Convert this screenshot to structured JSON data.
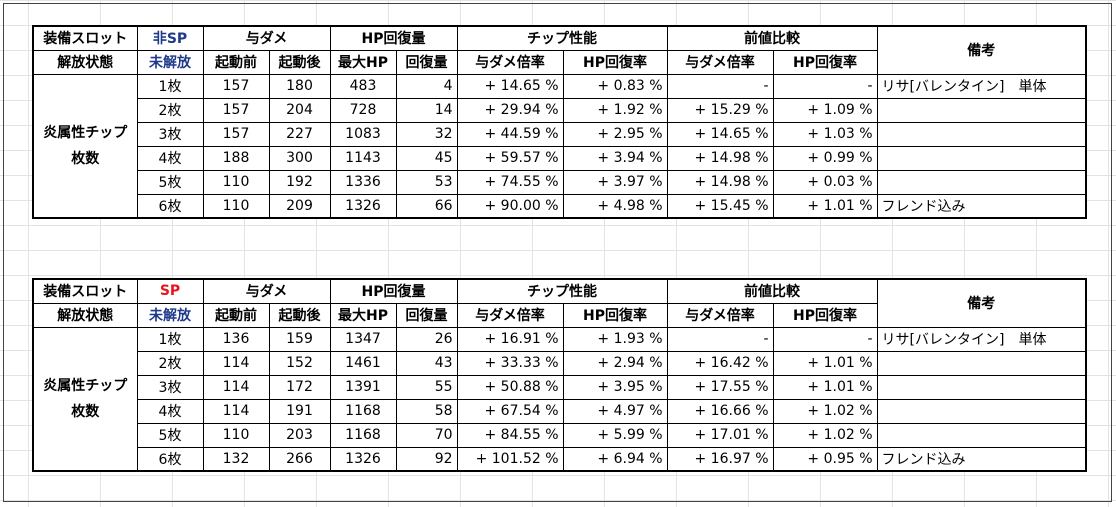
{
  "tables": [
    {
      "slot_label": "装備スロット",
      "slot_value": "非SP",
      "state_label": "解放状態",
      "state_value": "未解放",
      "groups": {
        "damage": "与ダメ",
        "hp_recovery": "HP回復量",
        "chip": "チップ性能",
        "prev": "前値比較",
        "notes": "備考"
      },
      "sub": {
        "before": "起動前",
        "after": "起動後",
        "max_hp": "最大HP",
        "recovery": "回復量",
        "dmg_rate": "与ダメ倍率",
        "hp_rate": "HP回復率",
        "prev_dmg_rate": "与ダメ倍率",
        "prev_hp_rate": "HP回復率"
      },
      "row_label_line1": "炎属性チップ",
      "row_label_line2": "枚数",
      "rows": [
        {
          "count": "1枚",
          "before": "157",
          "after": "180",
          "max_hp": "483",
          "recovery": "4",
          "dmg_rate": "+ 14.65 %",
          "hp_rate": "+ 0.83 %",
          "prev_dmg": "-",
          "prev_hp": "-",
          "note": "リサ[バレンタイン]　単体"
        },
        {
          "count": "2枚",
          "before": "157",
          "after": "204",
          "max_hp": "728",
          "recovery": "14",
          "dmg_rate": "+ 29.94 %",
          "hp_rate": "+ 1.92 %",
          "prev_dmg": "+ 15.29 %",
          "prev_hp": "+ 1.09 %",
          "note": ""
        },
        {
          "count": "3枚",
          "before": "157",
          "after": "227",
          "max_hp": "1083",
          "recovery": "32",
          "dmg_rate": "+ 44.59 %",
          "hp_rate": "+ 2.95 %",
          "prev_dmg": "+ 14.65 %",
          "prev_hp": "+ 1.03 %",
          "note": ""
        },
        {
          "count": "4枚",
          "before": "188",
          "after": "300",
          "max_hp": "1143",
          "recovery": "45",
          "dmg_rate": "+ 59.57 %",
          "hp_rate": "+ 3.94 %",
          "prev_dmg": "+ 14.98 %",
          "prev_hp": "+ 0.99 %",
          "note": ""
        },
        {
          "count": "5枚",
          "before": "110",
          "after": "192",
          "max_hp": "1336",
          "recovery": "53",
          "dmg_rate": "+ 74.55 %",
          "hp_rate": "+ 3.97 %",
          "prev_dmg": "+ 14.98 %",
          "prev_hp": "+ 0.03 %",
          "note": ""
        },
        {
          "count": "6枚",
          "before": "110",
          "after": "209",
          "max_hp": "1326",
          "recovery": "66",
          "dmg_rate": "+ 90.00 %",
          "hp_rate": "+ 4.98 %",
          "prev_dmg": "+ 15.45 %",
          "prev_hp": "+ 1.01 %",
          "note": "フレンド込み"
        }
      ]
    },
    {
      "slot_label": "装備スロット",
      "slot_value": "SP",
      "state_label": "解放状態",
      "state_value": "未解放",
      "groups": {
        "damage": "与ダメ",
        "hp_recovery": "HP回復量",
        "chip": "チップ性能",
        "prev": "前値比較",
        "notes": "備考"
      },
      "sub": {
        "before": "起動前",
        "after": "起動後",
        "max_hp": "最大HP",
        "recovery": "回復量",
        "dmg_rate": "与ダメ倍率",
        "hp_rate": "HP回復率",
        "prev_dmg_rate": "与ダメ倍率",
        "prev_hp_rate": "HP回復率"
      },
      "row_label_line1": "炎属性チップ",
      "row_label_line2": "枚数",
      "rows": [
        {
          "count": "1枚",
          "before": "136",
          "after": "159",
          "max_hp": "1347",
          "recovery": "26",
          "dmg_rate": "+ 16.91 %",
          "hp_rate": "+ 1.93 %",
          "prev_dmg": "-",
          "prev_hp": "-",
          "note": "リサ[バレンタイン]　単体"
        },
        {
          "count": "2枚",
          "before": "114",
          "after": "152",
          "max_hp": "1461",
          "recovery": "43",
          "dmg_rate": "+ 33.33 %",
          "hp_rate": "+ 2.94 %",
          "prev_dmg": "+ 16.42 %",
          "prev_hp": "+ 1.01 %",
          "note": ""
        },
        {
          "count": "3枚",
          "before": "114",
          "after": "172",
          "max_hp": "1391",
          "recovery": "55",
          "dmg_rate": "+ 50.88 %",
          "hp_rate": "+ 3.95 %",
          "prev_dmg": "+ 17.55 %",
          "prev_hp": "+ 1.01 %",
          "note": ""
        },
        {
          "count": "4枚",
          "before": "114",
          "after": "191",
          "max_hp": "1168",
          "recovery": "58",
          "dmg_rate": "+ 67.54 %",
          "hp_rate": "+ 4.97 %",
          "prev_dmg": "+ 16.66 %",
          "prev_hp": "+ 1.02 %",
          "note": ""
        },
        {
          "count": "5枚",
          "before": "110",
          "after": "203",
          "max_hp": "1168",
          "recovery": "70",
          "dmg_rate": "+ 84.55 %",
          "hp_rate": "+ 5.99 %",
          "prev_dmg": "+ 17.01 %",
          "prev_hp": "+ 1.02 %",
          "note": ""
        },
        {
          "count": "6枚",
          "before": "132",
          "after": "266",
          "max_hp": "1326",
          "recovery": "92",
          "dmg_rate": "+ 101.52 %",
          "hp_rate": "+ 6.94 %",
          "prev_dmg": "+ 16.97 %",
          "prev_hp": "+ 0.95 %",
          "note": "フレンド込み"
        }
      ]
    }
  ],
  "colors": {
    "blue_text": "#1f3a8a",
    "red_text": "#e8141b",
    "grid": "#e3e3e3"
  }
}
